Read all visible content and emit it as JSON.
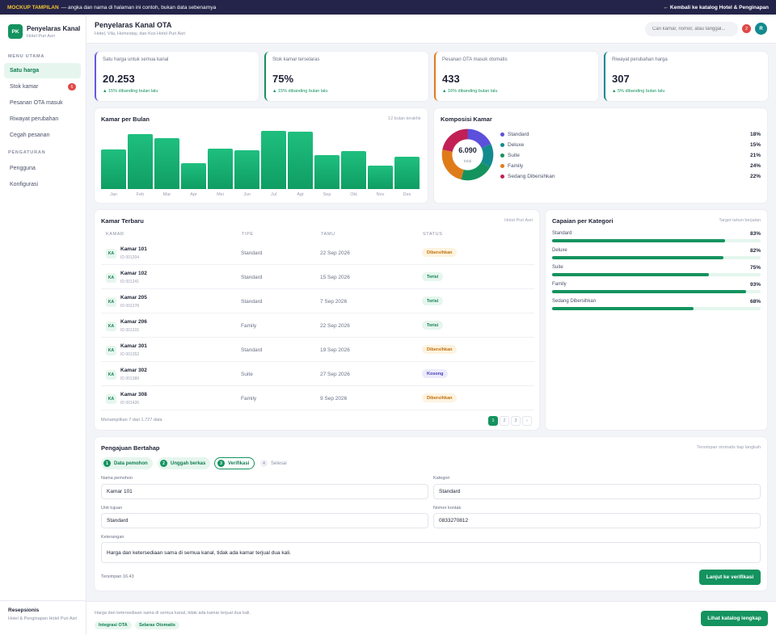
{
  "banner": {
    "tag": "MOCKUP TAMPILAN",
    "text": "— angka dan nama di halaman ini contoh, bukan data sebenarnya",
    "back": "← Kembali ke katalog Hotel & Penginapan"
  },
  "brand": {
    "logo": "PK",
    "name": "Penyelaras Kanal",
    "hotel": "Hotel Puri Asri"
  },
  "sidebar": {
    "section_main": "MENU UTAMA",
    "section_settings": "PENGATURAN",
    "items": [
      {
        "label": "Satu harga"
      },
      {
        "label": "Stok kamar",
        "badge": "5"
      },
      {
        "label": "Pesanan OTA masuk"
      },
      {
        "label": "Riwayat perubahan"
      },
      {
        "label": "Cegah pesanan"
      },
      {
        "label": "Pengguna"
      },
      {
        "label": "Konfigurasi"
      }
    ],
    "footer_title": "Resepsionis",
    "footer_sub": "Hotel & Penginapan Hotel Puri Asri"
  },
  "header": {
    "title": "Penyelaras Kanal OTA",
    "subtitle": "Hotel, Vila, Homestay, dan Kos Hotel Puri Asri",
    "search_placeholder": "Cari kamar, nomor, atau tanggal...",
    "notif_count": "2",
    "avatar": "R"
  },
  "kpis": [
    {
      "label": "Satu harga untuk semua kanal",
      "value": "20.253",
      "trend": "▲ 15% dibanding bulan lalu",
      "color": "#6a5ae0"
    },
    {
      "label": "Stok kamar terselaras",
      "value": "75%",
      "trend": "▲ 15% dibanding bulan lalu",
      "color": "#14935f"
    },
    {
      "label": "Pesanan OTA masuk otomatis",
      "value": "433",
      "trend": "▲ 16% dibanding bulan lalu",
      "color": "#e07b1a"
    },
    {
      "label": "Riwayat perubahan harga",
      "value": "307",
      "trend": "▲ 5% dibanding bulan lalu",
      "color": "#138a8e"
    }
  ],
  "bar_chart": {
    "title": "Kamar per Bulan",
    "note": "12 bulan terakhir",
    "chart_data": {
      "type": "bar",
      "categories": [
        "Jan",
        "Feb",
        "Mar",
        "Apr",
        "Mei",
        "Jun",
        "Jul",
        "Agt",
        "Sep",
        "Okt",
        "Nov",
        "Des"
      ],
      "values": [
        68,
        95,
        87,
        44,
        69,
        67,
        100,
        99,
        58,
        65,
        40,
        55
      ],
      "ylim": [
        0,
        100
      ]
    }
  },
  "donut": {
    "title": "Komposisi Kamar",
    "total": "6.090",
    "total_label": "total",
    "chart_data": {
      "type": "pie",
      "categories": [
        "Standard",
        "Deluxe",
        "Suite",
        "Family",
        "Sedang Dibersihkan"
      ],
      "values": [
        18,
        15,
        21,
        24,
        22
      ],
      "value_labels": [
        "18%",
        "15%",
        "21%",
        "24%",
        "22%"
      ],
      "colors": [
        "#5b4fdc",
        "#138a8e",
        "#14935f",
        "#e07b1a",
        "#c21f55"
      ]
    }
  },
  "table": {
    "title": "Kamar Terbaru",
    "note": "Hotel Puri Asri",
    "headers": [
      "KAMAR",
      "TIPE",
      "TAMU",
      "STATUS"
    ],
    "rows": [
      {
        "badge": "KA",
        "name": "Kamar 101",
        "id": "ID 001204",
        "type": "Standard",
        "date": "22 Sep 2026",
        "status": "Dibersihkan"
      },
      {
        "badge": "KA",
        "name": "Kamar 102",
        "id": "ID 001241",
        "type": "Standard",
        "date": "15 Sep 2026",
        "status": "Terisi"
      },
      {
        "badge": "KA",
        "name": "Kamar 205",
        "id": "ID 001278",
        "type": "Standard",
        "date": "7 Sep 2026",
        "status": "Terisi"
      },
      {
        "badge": "KA",
        "name": "Kamar 206",
        "id": "ID 001315",
        "type": "Family",
        "date": "22 Sep 2026",
        "status": "Terisi"
      },
      {
        "badge": "KA",
        "name": "Kamar 301",
        "id": "ID 001352",
        "type": "Standard",
        "date": "19 Sep 2026",
        "status": "Dibersihkan"
      },
      {
        "badge": "KA",
        "name": "Kamar 302",
        "id": "ID 001389",
        "type": "Suite",
        "date": "27 Sep 2026",
        "status": "Kosong"
      },
      {
        "badge": "KA",
        "name": "Kamar 308",
        "id": "ID 001426",
        "type": "Family",
        "date": "9 Sep 2026",
        "status": "Dibersihkan"
      }
    ],
    "footer": "Menampilkan 7 dari 1.727 data",
    "pages": [
      "1",
      "2",
      "3",
      "›"
    ]
  },
  "progress": {
    "title": "Capaian per Kategori",
    "note": "Target tahun berjalan",
    "items": [
      {
        "label": "Standard",
        "value": "83%",
        "pct": 83
      },
      {
        "label": "Deluxe",
        "value": "82%",
        "pct": 82
      },
      {
        "label": "Suite",
        "value": "75%",
        "pct": 75
      },
      {
        "label": "Family",
        "value": "93%",
        "pct": 93
      },
      {
        "label": "Sedang Dibersihkan",
        "value": "68%",
        "pct": 68
      }
    ]
  },
  "form": {
    "title": "Pengajuan Bertahap",
    "note": "Tersimpan otomatis tiap langkah",
    "steps": [
      {
        "n": "1",
        "label": "Data pemohon"
      },
      {
        "n": "2",
        "label": "Unggah berkas"
      },
      {
        "n": "3",
        "label": "Verifikasi"
      },
      {
        "n": "4",
        "label": "Selesai"
      }
    ],
    "name_label": "Nama pemohon",
    "name_value": "Kamar 101",
    "category_label": "Kategori",
    "category_value": "Standard",
    "unit_label": "Unit tujuan",
    "unit_value": "Standard",
    "contact_label": "Nomor kontak",
    "contact_value": "0833270812",
    "notes_label": "Keterangan",
    "notes_value": "Harga dan ketersediaan sama di semua kanal, tidak ada kamar terjual dua kali.",
    "saved": "Tersimpan 16.43",
    "next_button": "Lanjut ke verifikasi"
  },
  "footer": {
    "message": "Harga dan ketersediaan sama di semua kanal, tidak ada kamar terjual dua kali.",
    "chips": [
      "Integrasi OTA",
      "Selaras Otomatis"
    ],
    "cta": "Lihat katalog lengkap"
  }
}
